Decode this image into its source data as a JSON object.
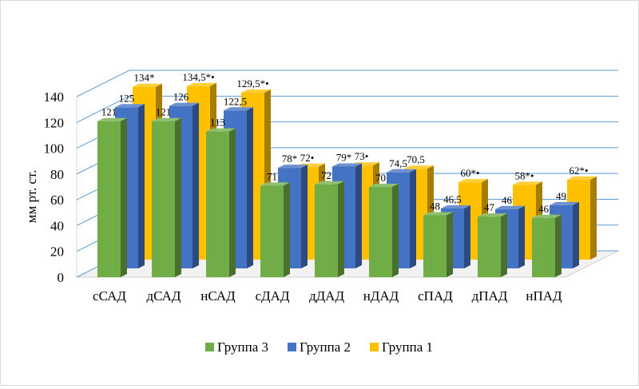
{
  "chart_data": {
    "type": "bar",
    "view": "3d-clustered-depth",
    "ylabel": "мм рт. ст.",
    "ylim": [
      0,
      140
    ],
    "ytick_step": 20,
    "yticks": [
      "0",
      "20",
      "40",
      "60",
      "80",
      "100",
      "120",
      "140"
    ],
    "grid": true,
    "legend_position": "bottom",
    "categories": [
      "сСАД",
      "дСАД",
      "нСАД",
      "сДАД",
      "дДАД",
      "нДАД",
      "сПАД",
      "дПАД",
      "нПАД"
    ],
    "series": [
      {
        "name": "Группа 1",
        "color": "#FFC000",
        "values": [
          134,
          134.5,
          129.5,
          72,
          73,
          70.5,
          60,
          58,
          62
        ],
        "labels": [
          "134*",
          "134,5*•",
          "129,5*•",
          "72•",
          "73•",
          "70,5",
          "60*•",
          "58*•",
          "62*•"
        ]
      },
      {
        "name": "Группа 2",
        "color": "#4472C4",
        "values": [
          125,
          126,
          122.5,
          78,
          79,
          74.5,
          46.5,
          46,
          49
        ],
        "labels": [
          "125",
          "126",
          "122,5",
          "78*",
          "79*",
          "74,5",
          "46,5",
          "46",
          "49"
        ]
      },
      {
        "name": "Группа 3",
        "color": "#70AD47",
        "values": [
          121,
          121,
          113,
          71,
          72,
          70,
          48,
          47,
          46
        ],
        "labels": [
          "121",
          "121",
          "113",
          "71",
          "72",
          "70",
          "48",
          "47",
          "46"
        ]
      }
    ],
    "legend_order": [
      "Группа 3",
      "Группа 2",
      "Группа 1"
    ]
  }
}
